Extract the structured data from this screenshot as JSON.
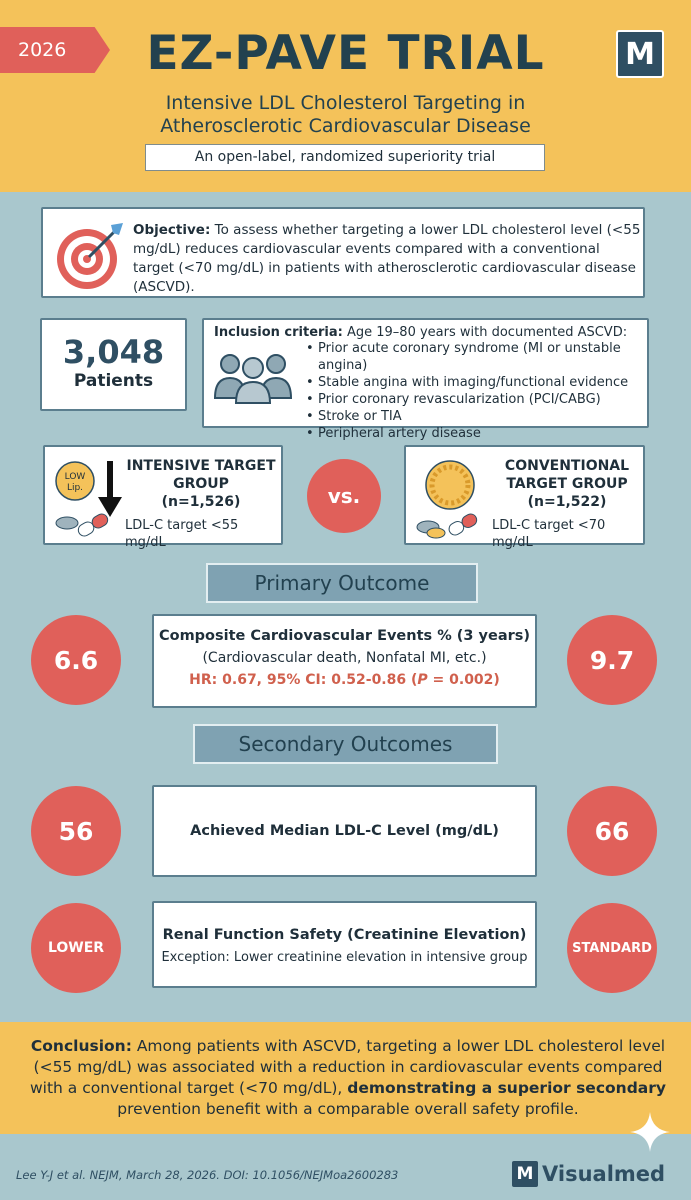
{
  "header": {
    "year": "2026",
    "title": "EZ-PAVE TRIAL",
    "logo_letter": "M",
    "subtitle_line1": "Intensive LDL Cholesterol Targeting in",
    "subtitle_line2": "Atherosclerotic Cardiovascular Disease",
    "design": "An open-label, randomized superiority trial"
  },
  "objective": {
    "label": "Objective:",
    "text": " To assess whether targeting a lower LDL cholesterol level (<55 mg/dL) reduces cardiovascular events compared with a conventional target (<70 mg/dL) in patients with atherosclerotic cardiovascular disease (ASCVD)."
  },
  "patients": {
    "count": "3,048",
    "label": "Patients"
  },
  "inclusion": {
    "label": "Inclusion criteria:",
    "text": " Age 19–80 years with documented ASCVD:",
    "items": [
      "Prior acute coronary syndrome (MI or unstable angina)",
      "Stable angina with imaging/functional evidence",
      "Prior coronary revascularization (PCI/CABG)",
      "Stroke or TIA",
      "Peripheral artery disease"
    ]
  },
  "intensive": {
    "title_line1": "INTENSIVE TARGET",
    "title_line2": "GROUP",
    "n": "(n=1,526)",
    "target": "LDL-C target <55 mg/dL",
    "icon_text_1": "LOW",
    "icon_text_2": "Lip."
  },
  "vs": "vs.",
  "conventional": {
    "title_line1": "CONVENTIONAL",
    "title_line2": "TARGET GROUP",
    "n": "(n=1,522)",
    "target": "LDL-C target <70 mg/dL"
  },
  "primary": {
    "section": "Primary Outcome",
    "title": "Composite Cardiovascular Events % (3 years)",
    "sub": "(Cardiovascular death, Nonfatal MI, etc.)",
    "hr_prefix": "HR: 0.67, 95% CI: 0.52-0.86 (",
    "hr_p": "P",
    "hr_suffix": " = 0.002)",
    "intensive_value": "6.6",
    "conventional_value": "9.7"
  },
  "secondary": {
    "section": "Secondary Outcomes",
    "ldl_title": "Achieved Median LDL-C Level (mg/dL)",
    "ldl_intensive": "56",
    "ldl_conventional": "66",
    "renal_title": "Renal Function Safety (Creatinine Elevation)",
    "renal_sub": "Exception: Lower creatinine elevation in intensive group",
    "renal_intensive": "LOWER",
    "renal_conventional": "STANDARD"
  },
  "conclusion": {
    "label": "Conclusion:",
    "text": " Among patients with ASCVD, targeting a lower LDL cholesterol level (<55 mg/dL) was associated with a reduction in cardiovascular events compared with a conventional target (<70 mg/dL), ",
    "emphasis": "demonstrating a superior secondary",
    "tail": " prevention benefit with a comparable overall safety profile."
  },
  "footer": {
    "citation": "Lee Y-J et al. NEJM, March 28, 2026. DOI: 10.1056/NEJMoa2600283",
    "brand_letter": "M",
    "brand_name": "Visualmed"
  },
  "colors": {
    "header_bg": "#f4c25a",
    "page_bg": "#a9c7cd",
    "accent_red": "#e0605a",
    "navy": "#22414f",
    "section_tab": "#7fa2b2"
  }
}
